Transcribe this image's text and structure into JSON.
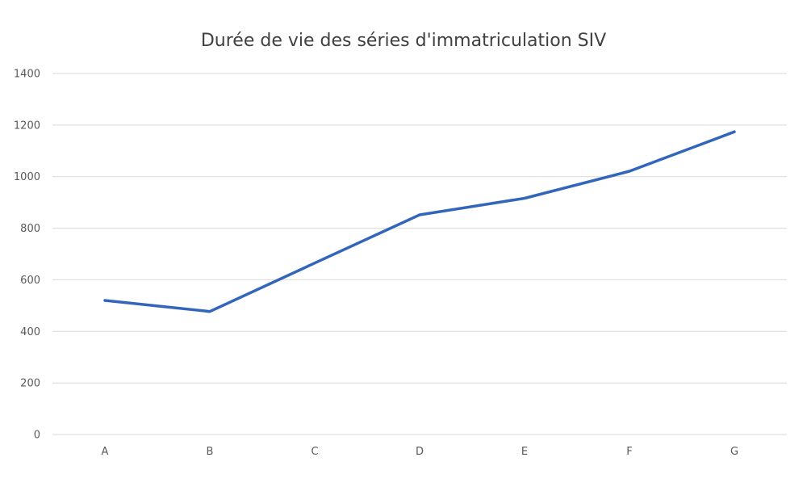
{
  "chart_data": {
    "type": "line",
    "title": "Durée de vie des séries d'immatriculation SIV",
    "categories": [
      "A",
      "B",
      "C",
      "D",
      "E",
      "F",
      "G"
    ],
    "series": [
      {
        "values": [
          520,
          477,
          665,
          852,
          916,
          1021,
          1174
        ]
      }
    ],
    "yticks": [
      "0",
      "200",
      "400",
      "600",
      "800",
      "1000",
      "1200",
      "1400"
    ],
    "ylim": [
      0,
      1400
    ],
    "grid": true,
    "legend": "none",
    "colors": {
      "line": "#3366bb"
    }
  }
}
